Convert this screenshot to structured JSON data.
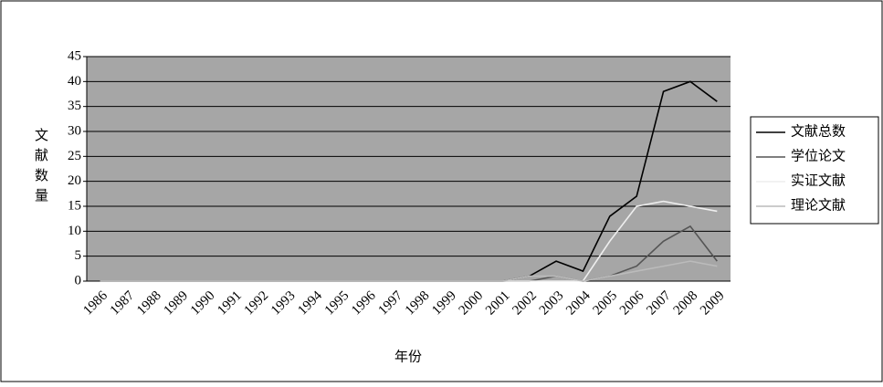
{
  "chart_data": {
    "type": "line",
    "y_label": "文献数量",
    "x_label": "年份",
    "categories": [
      "1986",
      "1987",
      "1988",
      "1989",
      "1990",
      "1991",
      "1992",
      "1993",
      "1994",
      "1995",
      "1996",
      "1997",
      "1998",
      "1999",
      "2000",
      "2001",
      "2002",
      "2003",
      "2004",
      "2005",
      "2006",
      "2007",
      "2008",
      "2009"
    ],
    "series": [
      {
        "name": "文献总数",
        "color": "#000000",
        "values": [
          0,
          0,
          0,
          0,
          0,
          0,
          0,
          0,
          0,
          0,
          0,
          0,
          0,
          0,
          0,
          0,
          1,
          4,
          2,
          13,
          17,
          38,
          40,
          36
        ]
      },
      {
        "name": "学位论文",
        "color": "#555555",
        "values": [
          0,
          0,
          0,
          0,
          0,
          0,
          0,
          0,
          0,
          0,
          0,
          0,
          0,
          0,
          0,
          0,
          0,
          1,
          0,
          1,
          3,
          8,
          11,
          4
        ]
      },
      {
        "name": "实证文献",
        "color": "#eeeeee",
        "values": [
          0,
          0,
          0,
          0,
          0,
          0,
          0,
          0,
          0,
          0,
          0,
          0,
          0,
          0,
          0,
          0,
          0,
          0,
          0,
          8,
          15,
          16,
          15,
          14
        ]
      },
      {
        "name": "理论文献",
        "color": "#bbbbbb",
        "values": [
          0,
          0,
          0,
          0,
          0,
          0,
          0,
          0,
          0,
          0,
          0,
          0,
          0,
          0,
          0,
          0,
          1,
          1,
          0,
          1,
          2,
          3,
          4,
          3
        ]
      }
    ],
    "ylim": [
      0,
      45
    ],
    "yticks": [
      0,
      5,
      10,
      15,
      20,
      25,
      30,
      35,
      40,
      45
    ],
    "grid": true
  }
}
